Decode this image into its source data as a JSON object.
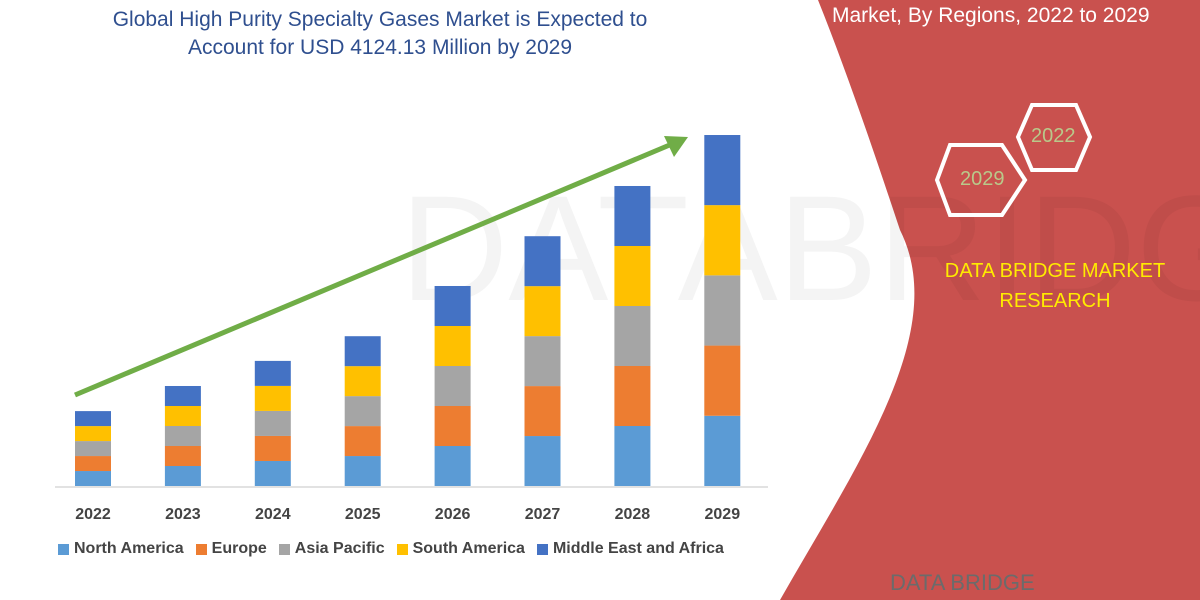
{
  "header": {
    "title_line1": "Global High Purity Specialty Gases Market is Expected to",
    "title_line2": "Account for USD 4124.13 Million by 2029"
  },
  "side_panel": {
    "title": "Market, By Regions, 2022 to 2029",
    "hex_year_start": "2022",
    "hex_year_end": "2029",
    "brand_line1": "DATA BRIDGE MARKET",
    "brand_line2": "RESEARCH",
    "logo_text": "DATA BRIDGE",
    "color": "#c9514e",
    "brand_color": "#ffeb00"
  },
  "chart_data": {
    "type": "bar",
    "stacked": true,
    "title": "Global High Purity Specialty Gases Market is Expected to Account for USD 4124.13 Million by 2029",
    "xlabel": "",
    "ylabel": "",
    "categories": [
      "2022",
      "2023",
      "2024",
      "2025",
      "2026",
      "2027",
      "2028",
      "2029"
    ],
    "ylim": [
      0,
      4124.13
    ],
    "grid": false,
    "legend": "bottom",
    "trend_arrow": true,
    "trend_color": "#70ad47",
    "series": [
      {
        "name": "North America",
        "color": "#5b9bd5",
        "values": [
          176,
          235,
          294,
          352,
          470,
          587,
          705,
          825
        ]
      },
      {
        "name": "Europe",
        "color": "#ed7d31",
        "values": [
          176,
          235,
          294,
          352,
          470,
          587,
          705,
          825
        ]
      },
      {
        "name": "Asia Pacific",
        "color": "#a5a5a5",
        "values": [
          176,
          235,
          294,
          352,
          470,
          587,
          705,
          825
        ]
      },
      {
        "name": "South America",
        "color": "#ffc000",
        "values": [
          176,
          235,
          294,
          352,
          470,
          587,
          705,
          825
        ]
      },
      {
        "name": "Middle East and Africa",
        "color": "#4472c4",
        "values": [
          176,
          235,
          294,
          352,
          470,
          587,
          705,
          824
        ]
      }
    ]
  }
}
